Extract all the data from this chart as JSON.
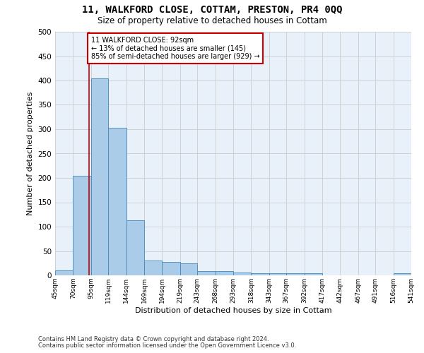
{
  "title1": "11, WALKFORD CLOSE, COTTAM, PRESTON, PR4 0QQ",
  "title2": "Size of property relative to detached houses in Cottam",
  "xlabel": "Distribution of detached houses by size in Cottam",
  "ylabel": "Number of detached properties",
  "footnote1": "Contains HM Land Registry data © Crown copyright and database right 2024.",
  "footnote2": "Contains public sector information licensed under the Open Government Licence v3.0.",
  "bar_edges": [
    45,
    70,
    95,
    119,
    144,
    169,
    194,
    219,
    243,
    268,
    293,
    318,
    343,
    367,
    392,
    417,
    442,
    467,
    491,
    516,
    541
  ],
  "bar_heights": [
    10,
    205,
    405,
    303,
    113,
    30,
    28,
    25,
    9,
    8,
    6,
    4,
    4,
    4,
    4,
    0,
    0,
    0,
    0,
    5
  ],
  "bar_color": "#aacce8",
  "bar_edge_color": "#4488bb",
  "vline_x": 92,
  "vline_color": "#cc0000",
  "ylim": [
    0,
    500
  ],
  "yticks": [
    0,
    50,
    100,
    150,
    200,
    250,
    300,
    350,
    400,
    450,
    500
  ],
  "annotation_text": "11 WALKFORD CLOSE: 92sqm\n← 13% of detached houses are smaller (145)\n85% of semi-detached houses are larger (929) →",
  "annotation_box_color": "#ffffff",
  "annotation_border_color": "#cc0000",
  "grid_color": "#cccccc",
  "plot_bg_color": "#e8f0fa",
  "fig_bg_color": "#ffffff"
}
